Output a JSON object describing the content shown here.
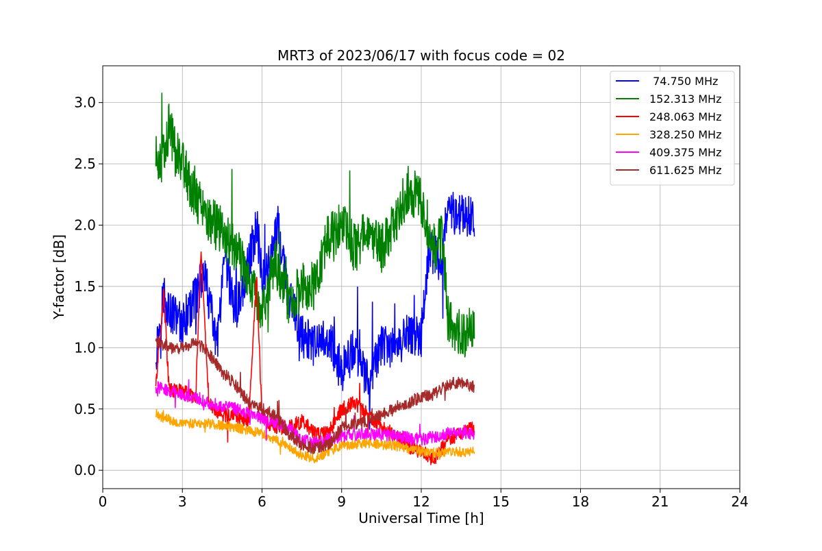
{
  "chart_data": {
    "type": "line",
    "title": "MRT3 of 2023/06/17 with focus code = 02",
    "xlabel": "Universal Time [h]",
    "ylabel": "Y-factor [dB]",
    "xlim": [
      0,
      24
    ],
    "ylim": [
      -0.15,
      3.3
    ],
    "xticks": [
      0,
      3,
      6,
      9,
      12,
      15,
      18,
      21,
      24
    ],
    "yticks": [
      0.0,
      0.5,
      1.0,
      1.5,
      2.0,
      2.5,
      3.0
    ],
    "xtick_labels": [
      "0",
      "3",
      "6",
      "9",
      "12",
      "15",
      "18",
      "21",
      "24"
    ],
    "ytick_labels": [
      "0.0",
      "0.5",
      "1.0",
      "1.5",
      "2.0",
      "2.5",
      "3.0"
    ],
    "grid": true,
    "legend_position": "top-right",
    "series": [
      {
        "name": " 74.750 MHz",
        "color": "#0000ff",
        "noise": 0.18,
        "x": [
          2.0,
          2.3,
          2.5,
          3.0,
          3.5,
          3.8,
          4.0,
          4.3,
          4.6,
          5.0,
          5.3,
          5.6,
          5.8,
          6.0,
          6.3,
          6.6,
          7.0,
          7.5,
          8.0,
          8.5,
          9.0,
          9.5,
          10.0,
          10.5,
          11.0,
          11.5,
          12.0,
          12.3,
          12.7,
          13.0,
          13.5,
          14.0
        ],
        "y": [
          0.95,
          1.45,
          1.3,
          1.2,
          1.4,
          1.6,
          1.4,
          1.0,
          1.7,
          1.3,
          1.5,
          1.8,
          2.0,
          1.6,
          1.7,
          2.0,
          1.4,
          1.1,
          1.0,
          1.1,
          0.8,
          1.0,
          0.7,
          1.0,
          1.0,
          1.1,
          1.1,
          1.8,
          1.7,
          2.1,
          2.1,
          2.05
        ]
      },
      {
        "name": "152.313 MHz",
        "color": "#008000",
        "noise": 0.2,
        "x": [
          2.0,
          2.3,
          2.5,
          2.8,
          3.0,
          3.3,
          3.6,
          4.0,
          4.5,
          5.0,
          5.5,
          6.0,
          6.5,
          7.0,
          7.5,
          8.0,
          8.5,
          9.0,
          9.5,
          10.0,
          10.5,
          11.0,
          11.5,
          12.0,
          12.5,
          12.8,
          13.0,
          13.5,
          14.0
        ],
        "y": [
          2.55,
          2.55,
          2.8,
          2.6,
          2.55,
          2.3,
          2.2,
          2.05,
          1.95,
          1.8,
          1.6,
          1.3,
          1.7,
          1.4,
          1.5,
          1.5,
          1.9,
          2.0,
          1.8,
          2.0,
          1.8,
          2.0,
          2.3,
          2.2,
          1.8,
          1.9,
          1.25,
          1.1,
          1.15
        ]
      },
      {
        "name": "248.063 MHz",
        "color": "#ff0000",
        "noise": 0.06,
        "x": [
          2.0,
          2.3,
          2.5,
          3.0,
          3.5,
          3.7,
          4.0,
          4.5,
          5.0,
          5.5,
          5.8,
          6.0,
          6.5,
          7.0,
          7.5,
          8.0,
          8.5,
          9.0,
          9.5,
          10.0,
          10.5,
          11.0,
          11.5,
          12.0,
          12.5,
          13.0,
          13.5,
          14.0
        ],
        "y": [
          0.7,
          1.45,
          0.65,
          0.65,
          0.6,
          1.75,
          0.55,
          0.45,
          0.45,
          0.4,
          1.6,
          0.4,
          0.35,
          0.35,
          0.4,
          0.3,
          0.3,
          0.5,
          0.55,
          0.45,
          0.35,
          0.3,
          0.2,
          0.15,
          0.1,
          0.25,
          0.3,
          0.35
        ]
      },
      {
        "name": "328.250 MHz",
        "color": "#ffa500",
        "noise": 0.04,
        "x": [
          2.0,
          3.0,
          4.0,
          5.0,
          6.0,
          7.0,
          7.5,
          8.0,
          9.0,
          10.0,
          11.0,
          12.0,
          13.0,
          14.0
        ],
        "y": [
          0.45,
          0.38,
          0.38,
          0.35,
          0.3,
          0.2,
          0.12,
          0.1,
          0.2,
          0.22,
          0.2,
          0.15,
          0.15,
          0.15
        ]
      },
      {
        "name": "409.375 MHz",
        "color": "#ff00ff",
        "noise": 0.05,
        "x": [
          2.0,
          3.0,
          4.0,
          5.0,
          6.0,
          7.0,
          7.5,
          8.0,
          9.0,
          10.0,
          11.0,
          12.0,
          13.0,
          14.0
        ],
        "y": [
          0.68,
          0.62,
          0.55,
          0.5,
          0.42,
          0.35,
          0.25,
          0.22,
          0.28,
          0.3,
          0.28,
          0.25,
          0.3,
          0.3
        ]
      },
      {
        "name": "611.625 MHz",
        "color": "#a52a2a",
        "noise": 0.05,
        "x": [
          2.0,
          2.5,
          3.0,
          3.5,
          4.0,
          4.5,
          5.0,
          5.5,
          6.0,
          6.5,
          7.0,
          7.5,
          8.0,
          8.5,
          9.0,
          10.0,
          11.0,
          12.0,
          12.5,
          13.0,
          13.5,
          14.0
        ],
        "y": [
          1.05,
          1.0,
          1.0,
          1.05,
          0.95,
          0.8,
          0.7,
          0.55,
          0.5,
          0.45,
          0.3,
          0.2,
          0.18,
          0.2,
          0.35,
          0.4,
          0.5,
          0.6,
          0.62,
          0.7,
          0.72,
          0.68
        ]
      }
    ]
  }
}
